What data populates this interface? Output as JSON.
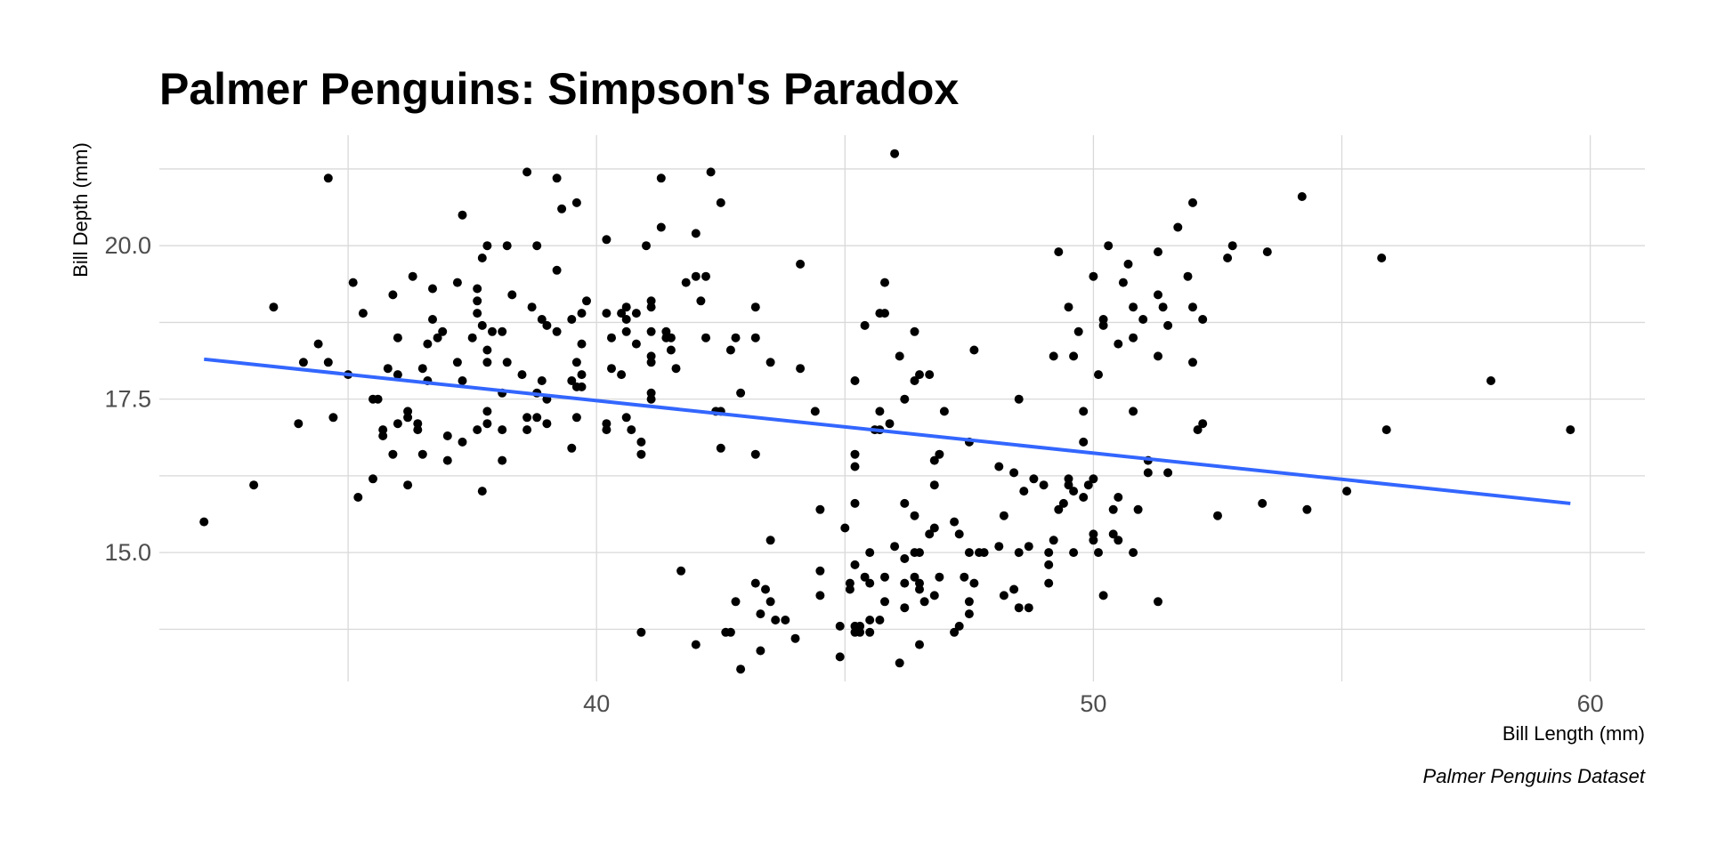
{
  "chart_data": {
    "type": "scatter",
    "title": "Palmer Penguins: Simpson's Paradox",
    "xlabel": "Bill Length (mm)",
    "ylabel": "Bill Depth (mm)",
    "caption": "Palmer Penguins Dataset",
    "xlim": [
      31.2,
      61.1
    ],
    "ylim": [
      12.9,
      21.8
    ],
    "x_ticks": [
      40,
      50,
      60
    ],
    "x_tick_labels": [
      "40",
      "50",
      "60"
    ],
    "y_ticks": [
      15,
      17.5,
      20
    ],
    "y_tick_labels": [
      "15.0",
      "17.5",
      "20.0"
    ],
    "grid": true,
    "point_color": "#000000",
    "trend_line": {
      "method": "linear fit",
      "color": "#3366FF",
      "points": [
        [
          32.1,
          18.15
        ],
        [
          59.6,
          15.8
        ]
      ]
    },
    "points": [
      [
        32.1,
        15.5
      ],
      [
        33.1,
        16.1
      ],
      [
        33.5,
        19.0
      ],
      [
        34.0,
        17.1
      ],
      [
        34.1,
        18.1
      ],
      [
        34.4,
        18.4
      ],
      [
        34.6,
        18.1
      ],
      [
        34.6,
        21.1
      ],
      [
        34.7,
        17.2
      ],
      [
        35.0,
        17.9
      ],
      [
        35.1,
        19.4
      ],
      [
        35.2,
        15.9
      ],
      [
        35.3,
        18.9
      ],
      [
        35.5,
        16.2
      ],
      [
        35.5,
        17.5
      ],
      [
        35.6,
        17.5
      ],
      [
        35.7,
        16.9
      ],
      [
        35.7,
        17.0
      ],
      [
        35.8,
        18.0
      ],
      [
        35.9,
        16.6
      ],
      [
        35.9,
        19.2
      ],
      [
        36.0,
        17.1
      ],
      [
        36.0,
        17.9
      ],
      [
        36.0,
        18.5
      ],
      [
        36.2,
        16.1
      ],
      [
        36.2,
        17.2
      ],
      [
        36.2,
        17.3
      ],
      [
        36.3,
        19.5
      ],
      [
        36.4,
        17.0
      ],
      [
        36.4,
        17.1
      ],
      [
        36.5,
        16.6
      ],
      [
        36.5,
        18.0
      ],
      [
        36.6,
        17.8
      ],
      [
        36.6,
        18.4
      ],
      [
        36.7,
        18.8
      ],
      [
        36.7,
        19.3
      ],
      [
        36.8,
        18.5
      ],
      [
        36.9,
        18.6
      ],
      [
        37.0,
        16.5
      ],
      [
        37.0,
        16.9
      ],
      [
        37.2,
        18.1
      ],
      [
        37.2,
        19.4
      ],
      [
        37.3,
        16.8
      ],
      [
        37.3,
        17.8
      ],
      [
        37.3,
        20.5
      ],
      [
        37.5,
        18.5
      ],
      [
        37.6,
        17.0
      ],
      [
        37.6,
        18.9
      ],
      [
        37.6,
        19.1
      ],
      [
        37.6,
        19.3
      ],
      [
        37.7,
        16.0
      ],
      [
        37.7,
        18.7
      ],
      [
        37.7,
        19.8
      ],
      [
        37.8,
        17.1
      ],
      [
        37.8,
        17.3
      ],
      [
        37.8,
        18.1
      ],
      [
        37.8,
        18.3
      ],
      [
        37.8,
        20.0
      ],
      [
        37.9,
        18.6
      ],
      [
        38.1,
        16.5
      ],
      [
        38.1,
        17.0
      ],
      [
        38.1,
        17.6
      ],
      [
        38.1,
        18.6
      ],
      [
        38.2,
        18.1
      ],
      [
        38.2,
        20.0
      ],
      [
        38.3,
        19.2
      ],
      [
        38.5,
        17.9
      ],
      [
        38.6,
        17.0
      ],
      [
        38.6,
        17.2
      ],
      [
        38.6,
        21.2
      ],
      [
        38.7,
        19.0
      ],
      [
        38.8,
        17.2
      ],
      [
        38.8,
        17.6
      ],
      [
        38.8,
        20.0
      ],
      [
        38.9,
        17.8
      ],
      [
        38.9,
        18.8
      ],
      [
        39.0,
        17.1
      ],
      [
        39.0,
        17.5
      ],
      [
        39.0,
        18.7
      ],
      [
        39.2,
        18.6
      ],
      [
        39.2,
        19.6
      ],
      [
        39.2,
        21.1
      ],
      [
        39.3,
        20.6
      ],
      [
        39.5,
        16.7
      ],
      [
        39.5,
        17.8
      ],
      [
        39.5,
        18.8
      ],
      [
        39.6,
        17.2
      ],
      [
        39.6,
        17.7
      ],
      [
        39.6,
        18.1
      ],
      [
        39.6,
        20.7
      ],
      [
        39.7,
        17.7
      ],
      [
        39.7,
        17.9
      ],
      [
        39.7,
        18.4
      ],
      [
        39.7,
        18.9
      ],
      [
        39.8,
        19.1
      ],
      [
        40.2,
        17.0
      ],
      [
        40.2,
        17.1
      ],
      [
        40.2,
        18.9
      ],
      [
        40.2,
        20.1
      ],
      [
        40.3,
        18.0
      ],
      [
        40.3,
        18.5
      ],
      [
        40.5,
        17.9
      ],
      [
        40.5,
        18.9
      ],
      [
        40.6,
        17.2
      ],
      [
        40.6,
        18.6
      ],
      [
        40.6,
        18.8
      ],
      [
        40.6,
        19.0
      ],
      [
        40.7,
        17.0
      ],
      [
        40.8,
        18.4
      ],
      [
        40.8,
        18.9
      ],
      [
        40.9,
        13.7
      ],
      [
        40.9,
        16.6
      ],
      [
        40.9,
        16.8
      ],
      [
        41.0,
        20.0
      ],
      [
        41.1,
        17.5
      ],
      [
        41.1,
        17.6
      ],
      [
        41.1,
        18.1
      ],
      [
        41.1,
        18.2
      ],
      [
        41.1,
        18.6
      ],
      [
        41.1,
        19.0
      ],
      [
        41.1,
        19.1
      ],
      [
        41.3,
        20.3
      ],
      [
        41.3,
        21.1
      ],
      [
        41.4,
        18.5
      ],
      [
        41.4,
        18.6
      ],
      [
        41.5,
        18.3
      ],
      [
        41.5,
        18.5
      ],
      [
        41.6,
        18.0
      ],
      [
        41.7,
        14.7
      ],
      [
        41.8,
        19.4
      ],
      [
        42.0,
        13.5
      ],
      [
        42.0,
        19.5
      ],
      [
        42.0,
        20.2
      ],
      [
        42.1,
        19.1
      ],
      [
        42.2,
        18.5
      ],
      [
        42.2,
        19.5
      ],
      [
        42.3,
        21.2
      ],
      [
        42.4,
        17.3
      ],
      [
        42.5,
        16.7
      ],
      [
        42.5,
        17.3
      ],
      [
        42.5,
        20.7
      ],
      [
        42.6,
        13.7
      ],
      [
        42.7,
        13.7
      ],
      [
        42.7,
        18.3
      ],
      [
        42.8,
        14.2
      ],
      [
        42.8,
        18.5
      ],
      [
        42.9,
        13.1
      ],
      [
        42.9,
        17.6
      ],
      [
        43.2,
        14.5
      ],
      [
        43.2,
        16.6
      ],
      [
        43.2,
        18.5
      ],
      [
        43.2,
        19.0
      ],
      [
        43.3,
        13.4
      ],
      [
        43.3,
        14.0
      ],
      [
        43.4,
        14.4
      ],
      [
        43.5,
        14.2
      ],
      [
        43.5,
        15.2
      ],
      [
        43.5,
        18.1
      ],
      [
        43.6,
        13.9
      ],
      [
        43.8,
        13.9
      ],
      [
        44.0,
        13.6
      ],
      [
        44.1,
        18.0
      ],
      [
        44.1,
        19.7
      ],
      [
        44.4,
        17.3
      ],
      [
        44.5,
        14.3
      ],
      [
        44.5,
        14.7
      ],
      [
        44.5,
        15.7
      ],
      [
        44.9,
        13.3
      ],
      [
        44.9,
        13.8
      ],
      [
        45.0,
        15.4
      ],
      [
        45.1,
        14.4
      ],
      [
        45.1,
        14.5
      ],
      [
        45.2,
        13.7
      ],
      [
        45.2,
        13.8
      ],
      [
        45.2,
        14.8
      ],
      [
        45.2,
        15.8
      ],
      [
        45.2,
        16.4
      ],
      [
        45.2,
        16.6
      ],
      [
        45.2,
        17.8
      ],
      [
        45.3,
        13.7
      ],
      [
        45.3,
        13.8
      ],
      [
        45.4,
        14.6
      ],
      [
        45.4,
        18.7
      ],
      [
        45.5,
        13.7
      ],
      [
        45.5,
        13.9
      ],
      [
        45.5,
        14.5
      ],
      [
        45.5,
        15.0
      ],
      [
        45.6,
        17.0
      ],
      [
        45.7,
        13.9
      ],
      [
        45.7,
        17.0
      ],
      [
        45.7,
        17.3
      ],
      [
        45.7,
        18.9
      ],
      [
        45.8,
        14.2
      ],
      [
        45.8,
        14.6
      ],
      [
        45.8,
        18.9
      ],
      [
        45.8,
        19.4
      ],
      [
        45.9,
        17.1
      ],
      [
        46.0,
        15.1
      ],
      [
        46.0,
        21.5
      ],
      [
        46.1,
        13.2
      ],
      [
        46.1,
        18.2
      ],
      [
        46.2,
        14.1
      ],
      [
        46.2,
        14.5
      ],
      [
        46.2,
        14.9
      ],
      [
        46.2,
        15.8
      ],
      [
        46.2,
        17.5
      ],
      [
        46.4,
        14.6
      ],
      [
        46.4,
        15.0
      ],
      [
        46.4,
        15.6
      ],
      [
        46.4,
        17.8
      ],
      [
        46.4,
        18.6
      ],
      [
        46.5,
        13.5
      ],
      [
        46.5,
        14.4
      ],
      [
        46.5,
        14.5
      ],
      [
        46.5,
        15.0
      ],
      [
        46.5,
        17.9
      ],
      [
        46.6,
        14.2
      ],
      [
        46.7,
        15.3
      ],
      [
        46.7,
        17.9
      ],
      [
        46.8,
        14.3
      ],
      [
        46.8,
        15.4
      ],
      [
        46.8,
        16.1
      ],
      [
        46.8,
        16.5
      ],
      [
        46.9,
        14.6
      ],
      [
        46.9,
        16.6
      ],
      [
        47.0,
        17.3
      ],
      [
        47.2,
        13.7
      ],
      [
        47.2,
        15.5
      ],
      [
        47.3,
        13.8
      ],
      [
        47.3,
        15.3
      ],
      [
        47.4,
        14.6
      ],
      [
        47.5,
        14.0
      ],
      [
        47.5,
        14.2
      ],
      [
        47.5,
        15.0
      ],
      [
        47.5,
        16.8
      ],
      [
        47.6,
        14.5
      ],
      [
        47.6,
        18.3
      ],
      [
        47.7,
        15.0
      ],
      [
        47.8,
        15.0
      ],
      [
        48.1,
        15.1
      ],
      [
        48.1,
        16.4
      ],
      [
        48.2,
        14.3
      ],
      [
        48.2,
        15.6
      ],
      [
        48.4,
        14.4
      ],
      [
        48.4,
        16.3
      ],
      [
        48.5,
        14.1
      ],
      [
        48.5,
        15.0
      ],
      [
        48.5,
        17.5
      ],
      [
        48.6,
        16.0
      ],
      [
        48.7,
        14.1
      ],
      [
        48.7,
        15.1
      ],
      [
        48.8,
        16.2
      ],
      [
        49.0,
        16.1
      ],
      [
        49.1,
        14.5
      ],
      [
        49.1,
        14.8
      ],
      [
        49.1,
        15.0
      ],
      [
        49.2,
        15.2
      ],
      [
        49.2,
        18.2
      ],
      [
        49.3,
        15.7
      ],
      [
        49.3,
        19.9
      ],
      [
        49.4,
        15.8
      ],
      [
        49.5,
        16.1
      ],
      [
        49.5,
        16.2
      ],
      [
        49.5,
        19.0
      ],
      [
        49.6,
        15.0
      ],
      [
        49.6,
        16.0
      ],
      [
        49.6,
        18.2
      ],
      [
        49.7,
        18.6
      ],
      [
        49.8,
        15.9
      ],
      [
        49.8,
        16.8
      ],
      [
        49.8,
        17.3
      ],
      [
        49.9,
        16.1
      ],
      [
        50.0,
        15.2
      ],
      [
        50.0,
        15.3
      ],
      [
        50.0,
        16.2
      ],
      [
        50.0,
        19.5
      ],
      [
        50.1,
        15.0
      ],
      [
        50.1,
        17.9
      ],
      [
        50.2,
        14.3
      ],
      [
        50.2,
        18.7
      ],
      [
        50.2,
        18.8
      ],
      [
        50.3,
        20.0
      ],
      [
        50.4,
        15.3
      ],
      [
        50.4,
        15.7
      ],
      [
        50.5,
        15.2
      ],
      [
        50.5,
        15.9
      ],
      [
        50.5,
        18.4
      ],
      [
        50.6,
        19.4
      ],
      [
        50.7,
        19.7
      ],
      [
        50.8,
        15.0
      ],
      [
        50.8,
        17.3
      ],
      [
        50.8,
        18.5
      ],
      [
        50.8,
        19.0
      ],
      [
        50.9,
        15.7
      ],
      [
        51.0,
        18.8
      ],
      [
        51.1,
        16.3
      ],
      [
        51.1,
        16.5
      ],
      [
        51.3,
        14.2
      ],
      [
        51.3,
        18.2
      ],
      [
        51.3,
        19.2
      ],
      [
        51.3,
        19.9
      ],
      [
        51.4,
        19.0
      ],
      [
        51.5,
        16.3
      ],
      [
        51.5,
        18.7
      ],
      [
        51.7,
        20.3
      ],
      [
        51.9,
        19.5
      ],
      [
        52.0,
        18.1
      ],
      [
        52.0,
        19.0
      ],
      [
        52.0,
        20.7
      ],
      [
        52.1,
        17.0
      ],
      [
        52.2,
        17.1
      ],
      [
        52.2,
        18.8
      ],
      [
        52.5,
        15.6
      ],
      [
        52.7,
        19.8
      ],
      [
        52.8,
        20.0
      ],
      [
        53.4,
        15.8
      ],
      [
        53.5,
        19.9
      ],
      [
        54.2,
        20.8
      ],
      [
        54.3,
        15.7
      ],
      [
        55.1,
        16.0
      ],
      [
        55.8,
        19.8
      ],
      [
        55.9,
        17.0
      ],
      [
        58.0,
        17.8
      ],
      [
        59.6,
        17.0
      ]
    ]
  }
}
